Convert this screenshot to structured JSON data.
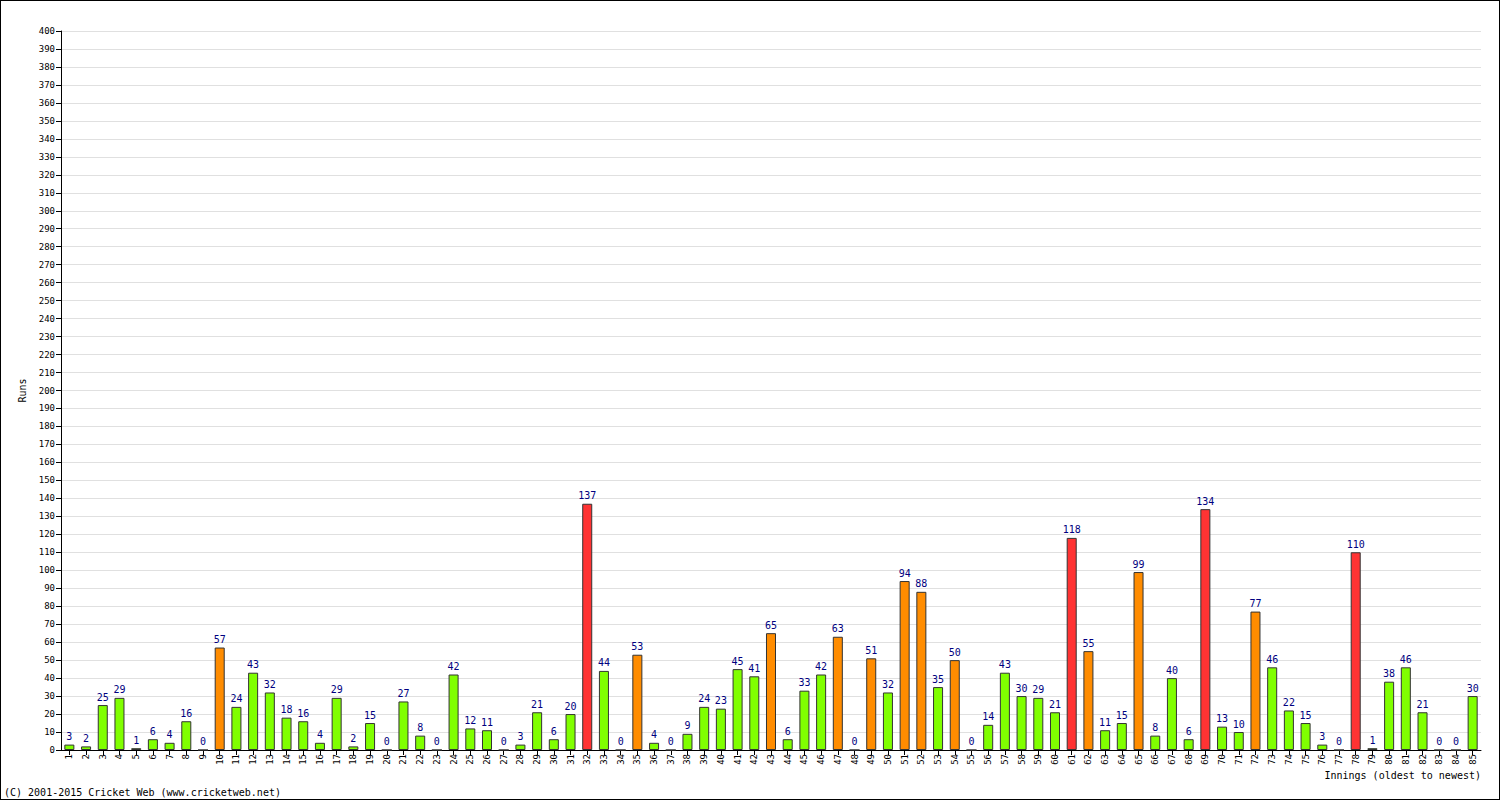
{
  "chart_data": {
    "type": "bar",
    "x_label": "Innings (oldest to newest)",
    "y_label": "Runs",
    "annotations": [
      "(C) 2001-2015 Cricket Web (www.cricketweb.net)"
    ],
    "categories": [
      "1",
      "2",
      "3",
      "4",
      "5",
      "6",
      "7",
      "8",
      "9",
      "10",
      "11",
      "12",
      "13",
      "14",
      "15",
      "16",
      "17",
      "18",
      "19",
      "20",
      "21",
      "22",
      "23",
      "24",
      "25",
      "26",
      "27",
      "28",
      "29",
      "30",
      "31",
      "32",
      "33",
      "34",
      "35",
      "36",
      "37",
      "38",
      "39",
      "40",
      "41",
      "42",
      "43",
      "44",
      "45",
      "46",
      "47",
      "48",
      "49",
      "50",
      "51",
      "52",
      "53",
      "54",
      "55",
      "56",
      "57",
      "58",
      "59",
      "60",
      "61",
      "62",
      "63",
      "64",
      "65",
      "66",
      "67",
      "68",
      "69",
      "70",
      "71",
      "72",
      "73",
      "74",
      "75",
      "76",
      "77",
      "78",
      "79",
      "80",
      "81",
      "82",
      "83",
      "84",
      "85"
    ],
    "values": [
      3,
      2,
      25,
      29,
      1,
      6,
      4,
      16,
      0,
      57,
      24,
      43,
      32,
      18,
      16,
      4,
      29,
      2,
      15,
      0,
      27,
      8,
      0,
      42,
      12,
      11,
      0,
      3,
      21,
      6,
      20,
      137,
      44,
      0,
      53,
      4,
      0,
      9,
      24,
      23,
      45,
      41,
      65,
      6,
      33,
      42,
      63,
      0,
      51,
      32,
      94,
      88,
      35,
      50,
      0,
      14,
      43,
      30,
      29,
      21,
      118,
      55,
      11,
      15,
      99,
      8,
      40,
      6,
      134,
      13,
      10,
      77,
      46,
      22,
      15,
      3,
      0,
      110,
      1,
      38,
      46,
      21,
      0,
      0,
      30
    ],
    "colors": [
      "#80ff00",
      "#80ff00",
      "#80ff00",
      "#80ff00",
      "#80ff00",
      "#80ff00",
      "#80ff00",
      "#80ff00",
      "#80ff00",
      "#ff8c00",
      "#80ff00",
      "#80ff00",
      "#80ff00",
      "#80ff00",
      "#80ff00",
      "#80ff00",
      "#80ff00",
      "#80ff00",
      "#80ff00",
      "#80ff00",
      "#80ff00",
      "#80ff00",
      "#80ff00",
      "#80ff00",
      "#80ff00",
      "#80ff00",
      "#80ff00",
      "#80ff00",
      "#80ff00",
      "#80ff00",
      "#80ff00",
      "#ff3333",
      "#80ff00",
      "#80ff00",
      "#ff8c00",
      "#80ff00",
      "#80ff00",
      "#80ff00",
      "#80ff00",
      "#80ff00",
      "#80ff00",
      "#80ff00",
      "#ff8c00",
      "#80ff00",
      "#80ff00",
      "#80ff00",
      "#ff8c00",
      "#80ff00",
      "#ff8c00",
      "#80ff00",
      "#ff8c00",
      "#ff8c00",
      "#80ff00",
      "#ff8c00",
      "#80ff00",
      "#80ff00",
      "#80ff00",
      "#80ff00",
      "#80ff00",
      "#80ff00",
      "#ff3333",
      "#ff8c00",
      "#80ff00",
      "#80ff00",
      "#ff8c00",
      "#80ff00",
      "#80ff00",
      "#80ff00",
      "#ff3333",
      "#80ff00",
      "#80ff00",
      "#ff8c00",
      "#80ff00",
      "#80ff00",
      "#80ff00",
      "#80ff00",
      "#80ff00",
      "#ff3333",
      "#80ff00",
      "#80ff00",
      "#80ff00",
      "#80ff00",
      "#80ff00",
      "#80ff00",
      "#80ff00"
    ],
    "ylim": [
      0,
      400
    ],
    "yticks": [
      0,
      10,
      20,
      30,
      40,
      50,
      60,
      70,
      80,
      90,
      100,
      110,
      120,
      130,
      140,
      150,
      160,
      170,
      180,
      190,
      200,
      210,
      220,
      230,
      240,
      250,
      260,
      270,
      280,
      290,
      300,
      310,
      320,
      330,
      340,
      350,
      360,
      370,
      380,
      390,
      400
    ],
    "grid": true,
    "data_labels": true
  }
}
